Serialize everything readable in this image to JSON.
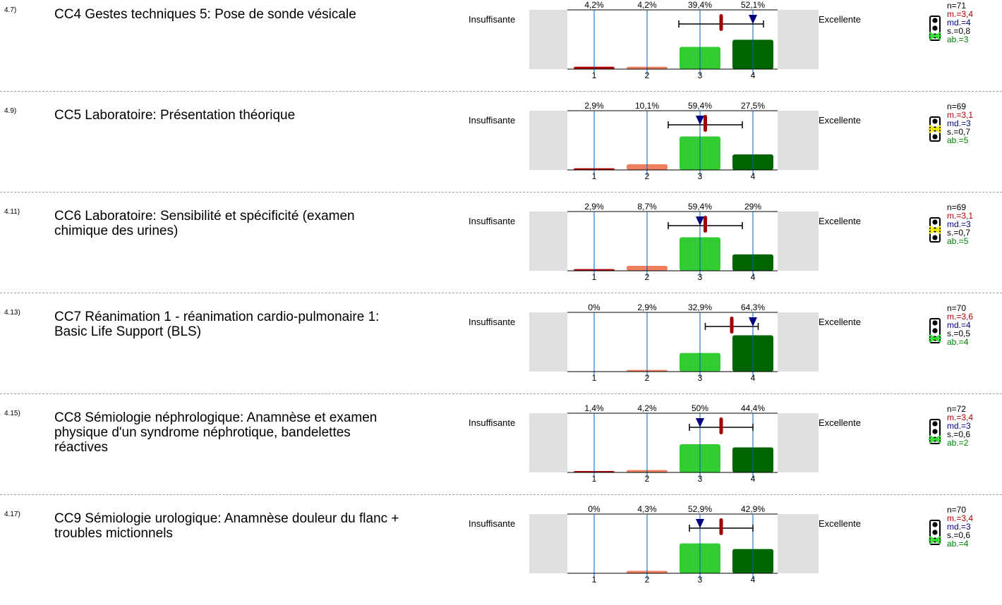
{
  "labels": {
    "left": "Insuffisante",
    "right": "Excellente"
  },
  "colors": {
    "c1": "#b00000",
    "c2": "#f08060",
    "c3": "#33cc33",
    "c4": "#006400",
    "mean": "#a00000",
    "median": "#000080",
    "grid": "#0060c0"
  },
  "chart_data": [
    {
      "type": "bar",
      "categories": [
        "1",
        "2",
        "3",
        "4"
      ],
      "percent_labels": [
        "4,2%",
        "4,2%",
        "39,4%",
        "52,1%"
      ],
      "values": [
        4.2,
        4.2,
        39.4,
        52.1
      ],
      "mean": 3.4,
      "median": 4,
      "sd": 0.8
    },
    {
      "type": "bar",
      "categories": [
        "1",
        "2",
        "3",
        "4"
      ],
      "percent_labels": [
        "2,9%",
        "10,1%",
        "59,4%",
        "27,5%"
      ],
      "values": [
        2.9,
        10.1,
        59.4,
        27.5
      ],
      "mean": 3.1,
      "median": 3,
      "sd": 0.7
    },
    {
      "type": "bar",
      "categories": [
        "1",
        "2",
        "3",
        "4"
      ],
      "percent_labels": [
        "2,9%",
        "8,7%",
        "59,4%",
        "29%"
      ],
      "values": [
        2.9,
        8.7,
        59.4,
        29
      ],
      "mean": 3.1,
      "median": 3,
      "sd": 0.7
    },
    {
      "type": "bar",
      "categories": [
        "1",
        "2",
        "3",
        "4"
      ],
      "percent_labels": [
        "0%",
        "2,9%",
        "32,9%",
        "64,3%"
      ],
      "values": [
        0,
        2.9,
        32.9,
        64.3
      ],
      "mean": 3.6,
      "median": 4,
      "sd": 0.5
    },
    {
      "type": "bar",
      "categories": [
        "1",
        "2",
        "3",
        "4"
      ],
      "percent_labels": [
        "1,4%",
        "4,2%",
        "50%",
        "44,4%"
      ],
      "values": [
        1.4,
        4.2,
        50,
        44.4
      ],
      "mean": 3.4,
      "median": 3,
      "sd": 0.6
    },
    {
      "type": "bar",
      "categories": [
        "1",
        "2",
        "3",
        "4"
      ],
      "percent_labels": [
        "0%",
        "4,3%",
        "52,9%",
        "42,9%"
      ],
      "values": [
        0,
        4.3,
        52.9,
        42.9
      ],
      "mean": 3.4,
      "median": 3,
      "sd": 0.6
    }
  ],
  "questions": [
    {
      "num": "4.7)",
      "code": "CC4",
      "title": "Gestes techniques 5: Pose de sonde vésicale",
      "light": "green",
      "stats": {
        "n": "n=71",
        "m": "m.=3,4",
        "md": "md.=4",
        "s": "s.=0,8",
        "ab": "ab.=3"
      }
    },
    {
      "num": "4.9)",
      "code": "CC5",
      "title": "Laboratoire: Présentation théorique",
      "light": "yellow",
      "stats": {
        "n": "n=69",
        "m": "m.=3,1",
        "md": "md.=3",
        "s": "s.=0,7",
        "ab": "ab.=5"
      }
    },
    {
      "num": "4.11)",
      "code": "CC6",
      "title": "Laboratoire: Sensibilité et spécificité (examen chimique des urines)",
      "light": "yellow",
      "stats": {
        "n": "n=69",
        "m": "m.=3,1",
        "md": "md.=3",
        "s": "s.=0,7",
        "ab": "ab.=5"
      }
    },
    {
      "num": "4.13)",
      "code": "CC7",
      "title": "Réanimation 1 - réanimation cardio-pulmonaire 1: Basic Life Support (BLS)",
      "light": "green",
      "stats": {
        "n": "n=70",
        "m": "m.=3,6",
        "md": "md.=4",
        "s": "s.=0,5",
        "ab": "ab.=4"
      }
    },
    {
      "num": "4.15)",
      "code": "CC8",
      "title": "Sémiologie néphrologique: Anamnèse et examen physique d'un syndrome néphrotique, bandelettes réactives",
      "light": "green",
      "stats": {
        "n": "n=72",
        "m": "m.=3,4",
        "md": "md.=3",
        "s": "s.=0,6",
        "ab": "ab.=2"
      }
    },
    {
      "num": "4.17)",
      "code": "CC9",
      "title": "Sémiologie urologique: Anamnèse douleur du flanc + troubles mictionnels",
      "light": "green",
      "stats": {
        "n": "n=70",
        "m": "m.=3,4",
        "md": "md.=3",
        "s": "s.=0,6",
        "ab": "ab.=4"
      }
    }
  ]
}
